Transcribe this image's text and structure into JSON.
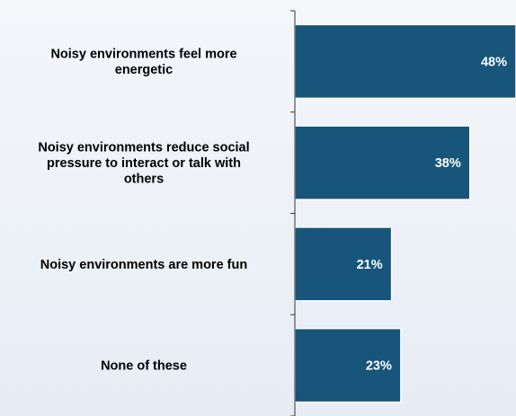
{
  "chart_data": {
    "type": "bar",
    "orientation": "horizontal",
    "categories": [
      [
        "Noisy environments feel more",
        "energetic"
      ],
      [
        "Noisy environments reduce social",
        "pressure to interact or talk with",
        "others"
      ],
      [
        "Noisy environments are more fun"
      ],
      [
        "None of these"
      ]
    ],
    "values": [
      48,
      38,
      21,
      23
    ],
    "data_labels": [
      "48%",
      "38%",
      "21%",
      "23%"
    ],
    "xlim": [
      0,
      48
    ],
    "grid": false,
    "legend": "none"
  },
  "colors": {
    "bar_fill": "#17557a",
    "bar_stroke": "#ffffff",
    "axis": "#333333",
    "label_text": "#000000",
    "data_label_text": "#ffffff"
  }
}
